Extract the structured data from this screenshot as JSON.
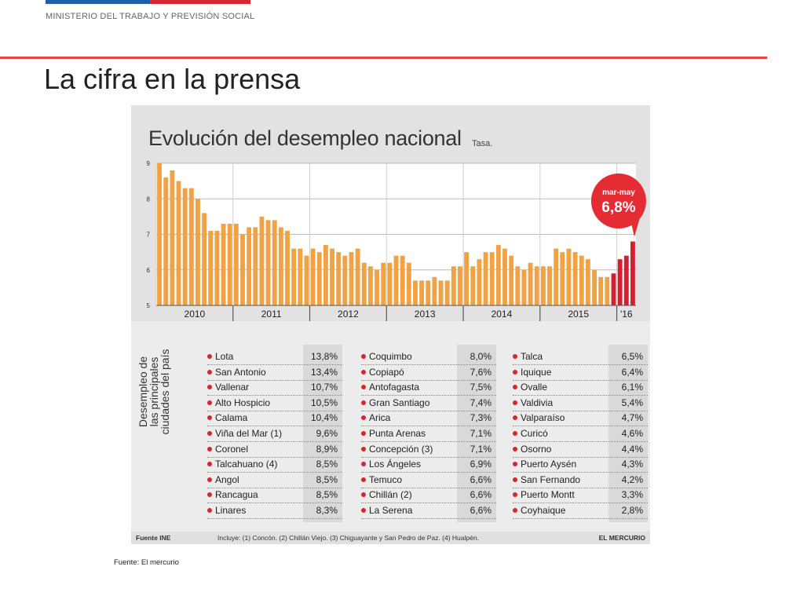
{
  "header": {
    "ministry": "MINISTERIO DEL TRABAJO Y PREVISIÓN SOCIAL",
    "title": "La cifra en la prensa"
  },
  "colors": {
    "bar": "#f0a244",
    "highlight": "#d41f2f",
    "accent_red": "#d8262e",
    "accent_blue": "#1f5fa8"
  },
  "chart_data": {
    "type": "bar",
    "title": "Evolución del desempleo nacional",
    "subtitle": "Tasa.",
    "ylim": [
      5,
      9
    ],
    "yticks": [
      "9",
      "8",
      "7",
      "6",
      "5"
    ],
    "year_labels": [
      "2010",
      "2011",
      "2012",
      "2013",
      "2014",
      "2015",
      "'16"
    ],
    "grid": true,
    "callout": {
      "label": "mar-may",
      "value": "6,8%"
    },
    "series": [
      {
        "values": [
          9.0,
          8.6,
          8.8,
          8.5,
          8.3,
          8.3,
          8.0,
          7.6,
          7.1,
          7.1,
          7.3,
          7.3,
          7.3,
          7.0,
          7.2,
          7.2,
          7.5,
          7.4,
          7.4,
          7.2,
          7.1,
          6.6,
          6.6,
          6.4,
          6.6,
          6.5,
          6.7,
          6.6,
          6.5,
          6.4,
          6.5,
          6.6,
          6.2,
          6.1,
          6.0,
          6.2,
          6.2,
          6.4,
          6.4,
          6.2,
          5.7,
          5.7,
          5.7,
          5.8,
          5.7,
          5.7,
          6.1,
          6.1,
          6.5,
          6.1,
          6.3,
          6.5,
          6.5,
          6.7,
          6.6,
          6.4,
          6.1,
          6.0,
          6.2,
          6.1,
          6.1,
          6.1,
          6.6,
          6.5,
          6.6,
          6.5,
          6.4,
          6.3,
          6.0,
          5.8,
          5.8,
          5.9,
          6.3,
          6.4,
          6.8
        ],
        "highlight_last": 4
      }
    ]
  },
  "table": {
    "side_label": "Desempleo de las principales ciudades del país",
    "columns": [
      [
        {
          "city": "Lota",
          "rate": "13,8%"
        },
        {
          "city": "San Antonio",
          "rate": "13,4%"
        },
        {
          "city": "Vallenar",
          "rate": "10,7%"
        },
        {
          "city": "Alto Hospicio",
          "rate": "10,5%"
        },
        {
          "city": "Calama",
          "rate": "10,4%"
        },
        {
          "city": "Viña del Mar (1)",
          "rate": "9,6%"
        },
        {
          "city": "Coronel",
          "rate": "8,9%"
        },
        {
          "city": "Talcahuano (4)",
          "rate": "8,5%"
        },
        {
          "city": "Angol",
          "rate": "8,5%"
        },
        {
          "city": "Rancagua",
          "rate": "8,5%"
        },
        {
          "city": "Linares",
          "rate": "8,3%"
        }
      ],
      [
        {
          "city": "Coquimbo",
          "rate": "8,0%"
        },
        {
          "city": "Copiapó",
          "rate": "7,6%"
        },
        {
          "city": "Antofagasta",
          "rate": "7,5%"
        },
        {
          "city": "Gran Santiago",
          "rate": "7,4%"
        },
        {
          "city": "Arica",
          "rate": "7,3%"
        },
        {
          "city": "Punta Arenas",
          "rate": "7,1%"
        },
        {
          "city": "Concepción (3)",
          "rate": "7,1%"
        },
        {
          "city": "Los Ángeles",
          "rate": "6,9%"
        },
        {
          "city": "Temuco",
          "rate": "6,6%"
        },
        {
          "city": "Chillán (2)",
          "rate": "6,6%"
        },
        {
          "city": "La Serena",
          "rate": "6,6%"
        }
      ],
      [
        {
          "city": "Talca",
          "rate": "6,5%"
        },
        {
          "city": "Iquique",
          "rate": "6,4%"
        },
        {
          "city": "Ovalle",
          "rate": "6,1%"
        },
        {
          "city": "Valdivia",
          "rate": "5,4%"
        },
        {
          "city": "Valparaíso",
          "rate": "4,7%"
        },
        {
          "city": "Curicó",
          "rate": "4,6%"
        },
        {
          "city": "Osorno",
          "rate": "4,4%"
        },
        {
          "city": "Puerto Aysén",
          "rate": "4,3%"
        },
        {
          "city": "San Fernando",
          "rate": "4,2%"
        },
        {
          "city": "Puerto Montt",
          "rate": "3,3%"
        },
        {
          "city": "Coyhaique",
          "rate": "2,8%"
        }
      ]
    ]
  },
  "footer": {
    "source": "Fuente INE",
    "includes": "Incluye: (1) Concón. (2) Chillán Viejo. (3) Chiguayante y San Pedro de Paz. (4) Hualpén.",
    "brand": "EL MERCURIO"
  },
  "caption": "Fuente: El mercurio"
}
